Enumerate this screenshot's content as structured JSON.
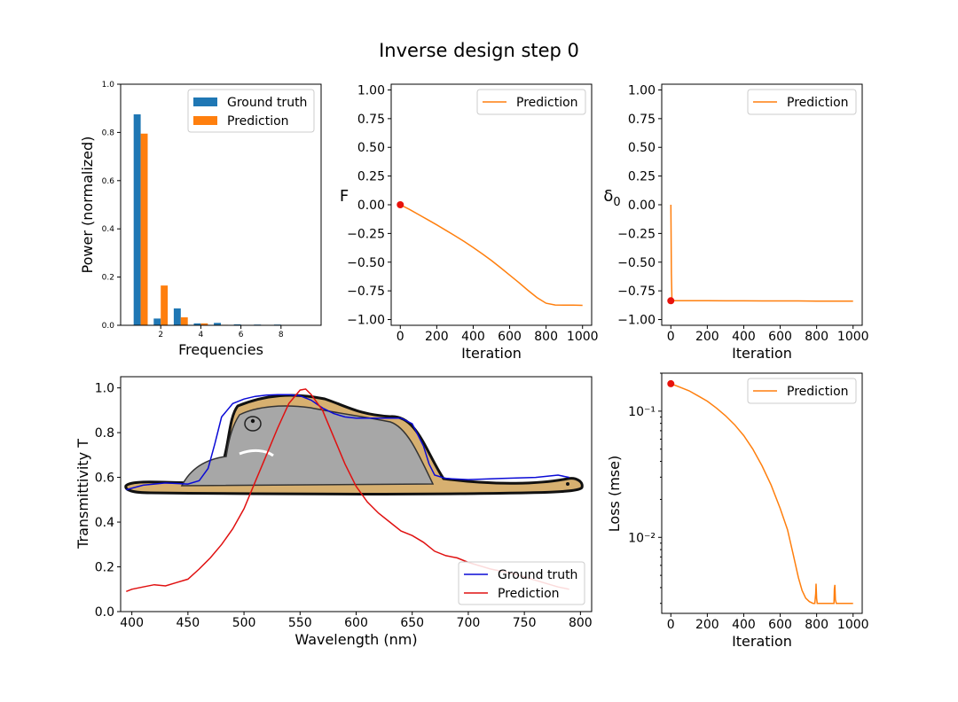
{
  "figure": {
    "title": "Inverse design step 0"
  },
  "colors": {
    "ground_truth_bar": "#1f77b4",
    "prediction_orange": "#ff7f0e",
    "marker_red": "#e8120c",
    "spectrum_ground_truth": "#0a0ad6",
    "spectrum_prediction": "#e01010",
    "snake_fill": "#d7b070",
    "elephant_fill": "#a7a7a7"
  },
  "chart_data": [
    {
      "id": "freq",
      "type": "bar",
      "xlabel": "Frequencies",
      "ylabel": "Power (normalized)",
      "xlim": [
        0,
        10
      ],
      "ylim": [
        0,
        1.0
      ],
      "xticks": [
        2,
        4,
        6,
        8
      ],
      "yticks": [
        0,
        0.2,
        0.4,
        0.6,
        0.8,
        1.0
      ],
      "ytick_labels": [
        "0.0",
        "0.2",
        "0.4",
        "0.6",
        "0.8",
        "1.0"
      ],
      "categories": [
        1,
        2,
        3,
        4,
        5,
        6,
        7,
        8,
        9
      ],
      "series": [
        {
          "name": "Ground truth",
          "values": [
            0.875,
            0.028,
            0.07,
            0.008,
            0.01,
            0.004,
            0.003,
            0.003,
            0.0
          ]
        },
        {
          "name": "Prediction",
          "values": [
            0.795,
            0.165,
            0.033,
            0.008,
            0.002,
            0.001,
            0.001,
            0.0,
            0.0
          ]
        }
      ],
      "legend": "upper right"
    },
    {
      "id": "F",
      "type": "line",
      "xlabel": "Iteration",
      "ylabel": "F",
      "xlim": [
        -50,
        1050
      ],
      "ylim": [
        -1.05,
        1.05
      ],
      "xticks": [
        0,
        200,
        400,
        600,
        800,
        1000
      ],
      "yticks": [
        -1.0,
        -0.75,
        -0.5,
        -0.25,
        0.0,
        0.25,
        0.5,
        0.75,
        1.0
      ],
      "ytick_labels": [
        "−1.00",
        "−0.75",
        "−0.50",
        "−0.25",
        "0.00",
        "0.25",
        "0.50",
        "0.75",
        "1.00"
      ],
      "series": [
        {
          "name": "Prediction",
          "x": [
            0,
            50,
            100,
            150,
            200,
            250,
            300,
            350,
            400,
            450,
            500,
            550,
            600,
            650,
            700,
            750,
            800,
            850,
            900,
            950,
            1000
          ],
          "y": [
            0.0,
            -0.04,
            -0.085,
            -0.13,
            -0.175,
            -0.222,
            -0.27,
            -0.32,
            -0.372,
            -0.428,
            -0.486,
            -0.548,
            -0.612,
            -0.677,
            -0.745,
            -0.808,
            -0.858,
            -0.873,
            -0.875,
            -0.875,
            -0.876
          ]
        }
      ],
      "marker": {
        "x": 0,
        "y": 0.0
      },
      "legend": "upper right"
    },
    {
      "id": "delta",
      "type": "line",
      "xlabel": "Iteration",
      "ylabel": "δ0",
      "xlim": [
        -50,
        1050
      ],
      "ylim": [
        -1.05,
        1.05
      ],
      "xticks": [
        0,
        200,
        400,
        600,
        800,
        1000
      ],
      "yticks": [
        -1.0,
        -0.75,
        -0.5,
        -0.25,
        0.0,
        0.25,
        0.5,
        0.75,
        1.0
      ],
      "ytick_labels": [
        "−1.00",
        "−0.75",
        "−0.50",
        "−0.25",
        "0.00",
        "0.25",
        "0.50",
        "0.75",
        "1.00"
      ],
      "series": [
        {
          "name": "Prediction",
          "x": [
            0,
            3,
            6,
            10,
            100,
            200,
            300,
            400,
            500,
            600,
            700,
            800,
            900,
            1000
          ],
          "y": [
            0.0,
            -0.6,
            -0.82,
            -0.835,
            -0.836,
            -0.836,
            -0.837,
            -0.837,
            -0.838,
            -0.838,
            -0.838,
            -0.839,
            -0.839,
            -0.839
          ]
        }
      ],
      "marker": {
        "x": 0,
        "y": -0.836
      },
      "legend": "upper right"
    },
    {
      "id": "spectrum",
      "type": "line",
      "xlabel": "Wavelength (nm)",
      "ylabel": "Transmittivity T",
      "xlim": [
        390,
        810
      ],
      "ylim": [
        0,
        1.05
      ],
      "xticks": [
        400,
        450,
        500,
        550,
        600,
        650,
        700,
        750,
        800
      ],
      "yticks": [
        0,
        0.2,
        0.4,
        0.6,
        0.8,
        1.0
      ],
      "ytick_labels": [
        "0.0",
        "0.2",
        "0.4",
        "0.6",
        "0.8",
        "1.0"
      ],
      "series": [
        {
          "name": "Ground truth",
          "x": [
            395,
            410,
            430,
            450,
            460,
            468,
            474,
            480,
            490,
            500,
            510,
            520,
            530,
            540,
            550,
            560,
            570,
            580,
            590,
            600,
            620,
            640,
            650,
            660,
            665,
            670,
            680,
            700,
            730,
            760,
            780,
            790
          ],
          "y": [
            0.545,
            0.565,
            0.575,
            0.57,
            0.585,
            0.64,
            0.75,
            0.87,
            0.93,
            0.95,
            0.962,
            0.968,
            0.97,
            0.97,
            0.965,
            0.945,
            0.91,
            0.885,
            0.87,
            0.865,
            0.865,
            0.865,
            0.84,
            0.74,
            0.66,
            0.61,
            0.595,
            0.59,
            0.595,
            0.6,
            0.61,
            0.6
          ]
        },
        {
          "name": "Prediction",
          "x": [
            395,
            400,
            410,
            420,
            430,
            440,
            450,
            460,
            470,
            480,
            490,
            500,
            510,
            520,
            530,
            540,
            550,
            555,
            560,
            570,
            580,
            590,
            600,
            610,
            620,
            630,
            640,
            650,
            660,
            670,
            680,
            690,
            700,
            720,
            740,
            760,
            780,
            790
          ],
          "y": [
            0.09,
            0.1,
            0.11,
            0.12,
            0.115,
            0.13,
            0.145,
            0.19,
            0.24,
            0.3,
            0.37,
            0.46,
            0.58,
            0.7,
            0.82,
            0.93,
            0.99,
            0.995,
            0.97,
            0.9,
            0.78,
            0.66,
            0.56,
            0.49,
            0.44,
            0.4,
            0.36,
            0.34,
            0.31,
            0.27,
            0.25,
            0.24,
            0.22,
            0.19,
            0.17,
            0.14,
            0.11,
            0.1
          ]
        }
      ],
      "legend": "lower right"
    },
    {
      "id": "loss",
      "type": "line",
      "xlabel": "Iteration",
      "ylabel": "Loss (mse)",
      "yscale": "log",
      "xlim": [
        -50,
        1050
      ],
      "ylim": [
        0.0025,
        0.2
      ],
      "xticks": [
        0,
        200,
        400,
        600,
        800,
        1000
      ],
      "yticks": [
        0.01,
        0.1
      ],
      "ytick_labels": [
        "10⁻²",
        "10⁻¹"
      ],
      "series": [
        {
          "name": "Prediction",
          "x": [
            0,
            50,
            100,
            150,
            200,
            250,
            300,
            350,
            400,
            450,
            500,
            550,
            600,
            640,
            670,
            700,
            720,
            740,
            760,
            780,
            790,
            795,
            797,
            800,
            803,
            808,
            820,
            850,
            880,
            895,
            897,
            900,
            903,
            908,
            930,
            960,
            1000
          ],
          "y": [
            0.165,
            0.155,
            0.145,
            0.132,
            0.12,
            0.106,
            0.092,
            0.078,
            0.064,
            0.05,
            0.037,
            0.026,
            0.017,
            0.0115,
            0.0075,
            0.0048,
            0.0038,
            0.0033,
            0.0031,
            0.003,
            0.003,
            0.0036,
            0.0043,
            0.0033,
            0.003,
            0.003,
            0.003,
            0.003,
            0.003,
            0.003,
            0.0039,
            0.0042,
            0.0032,
            0.003,
            0.003,
            0.003,
            0.003
          ]
        }
      ],
      "marker": {
        "x": 0,
        "y": 0.165
      },
      "legend": "upper right"
    }
  ]
}
